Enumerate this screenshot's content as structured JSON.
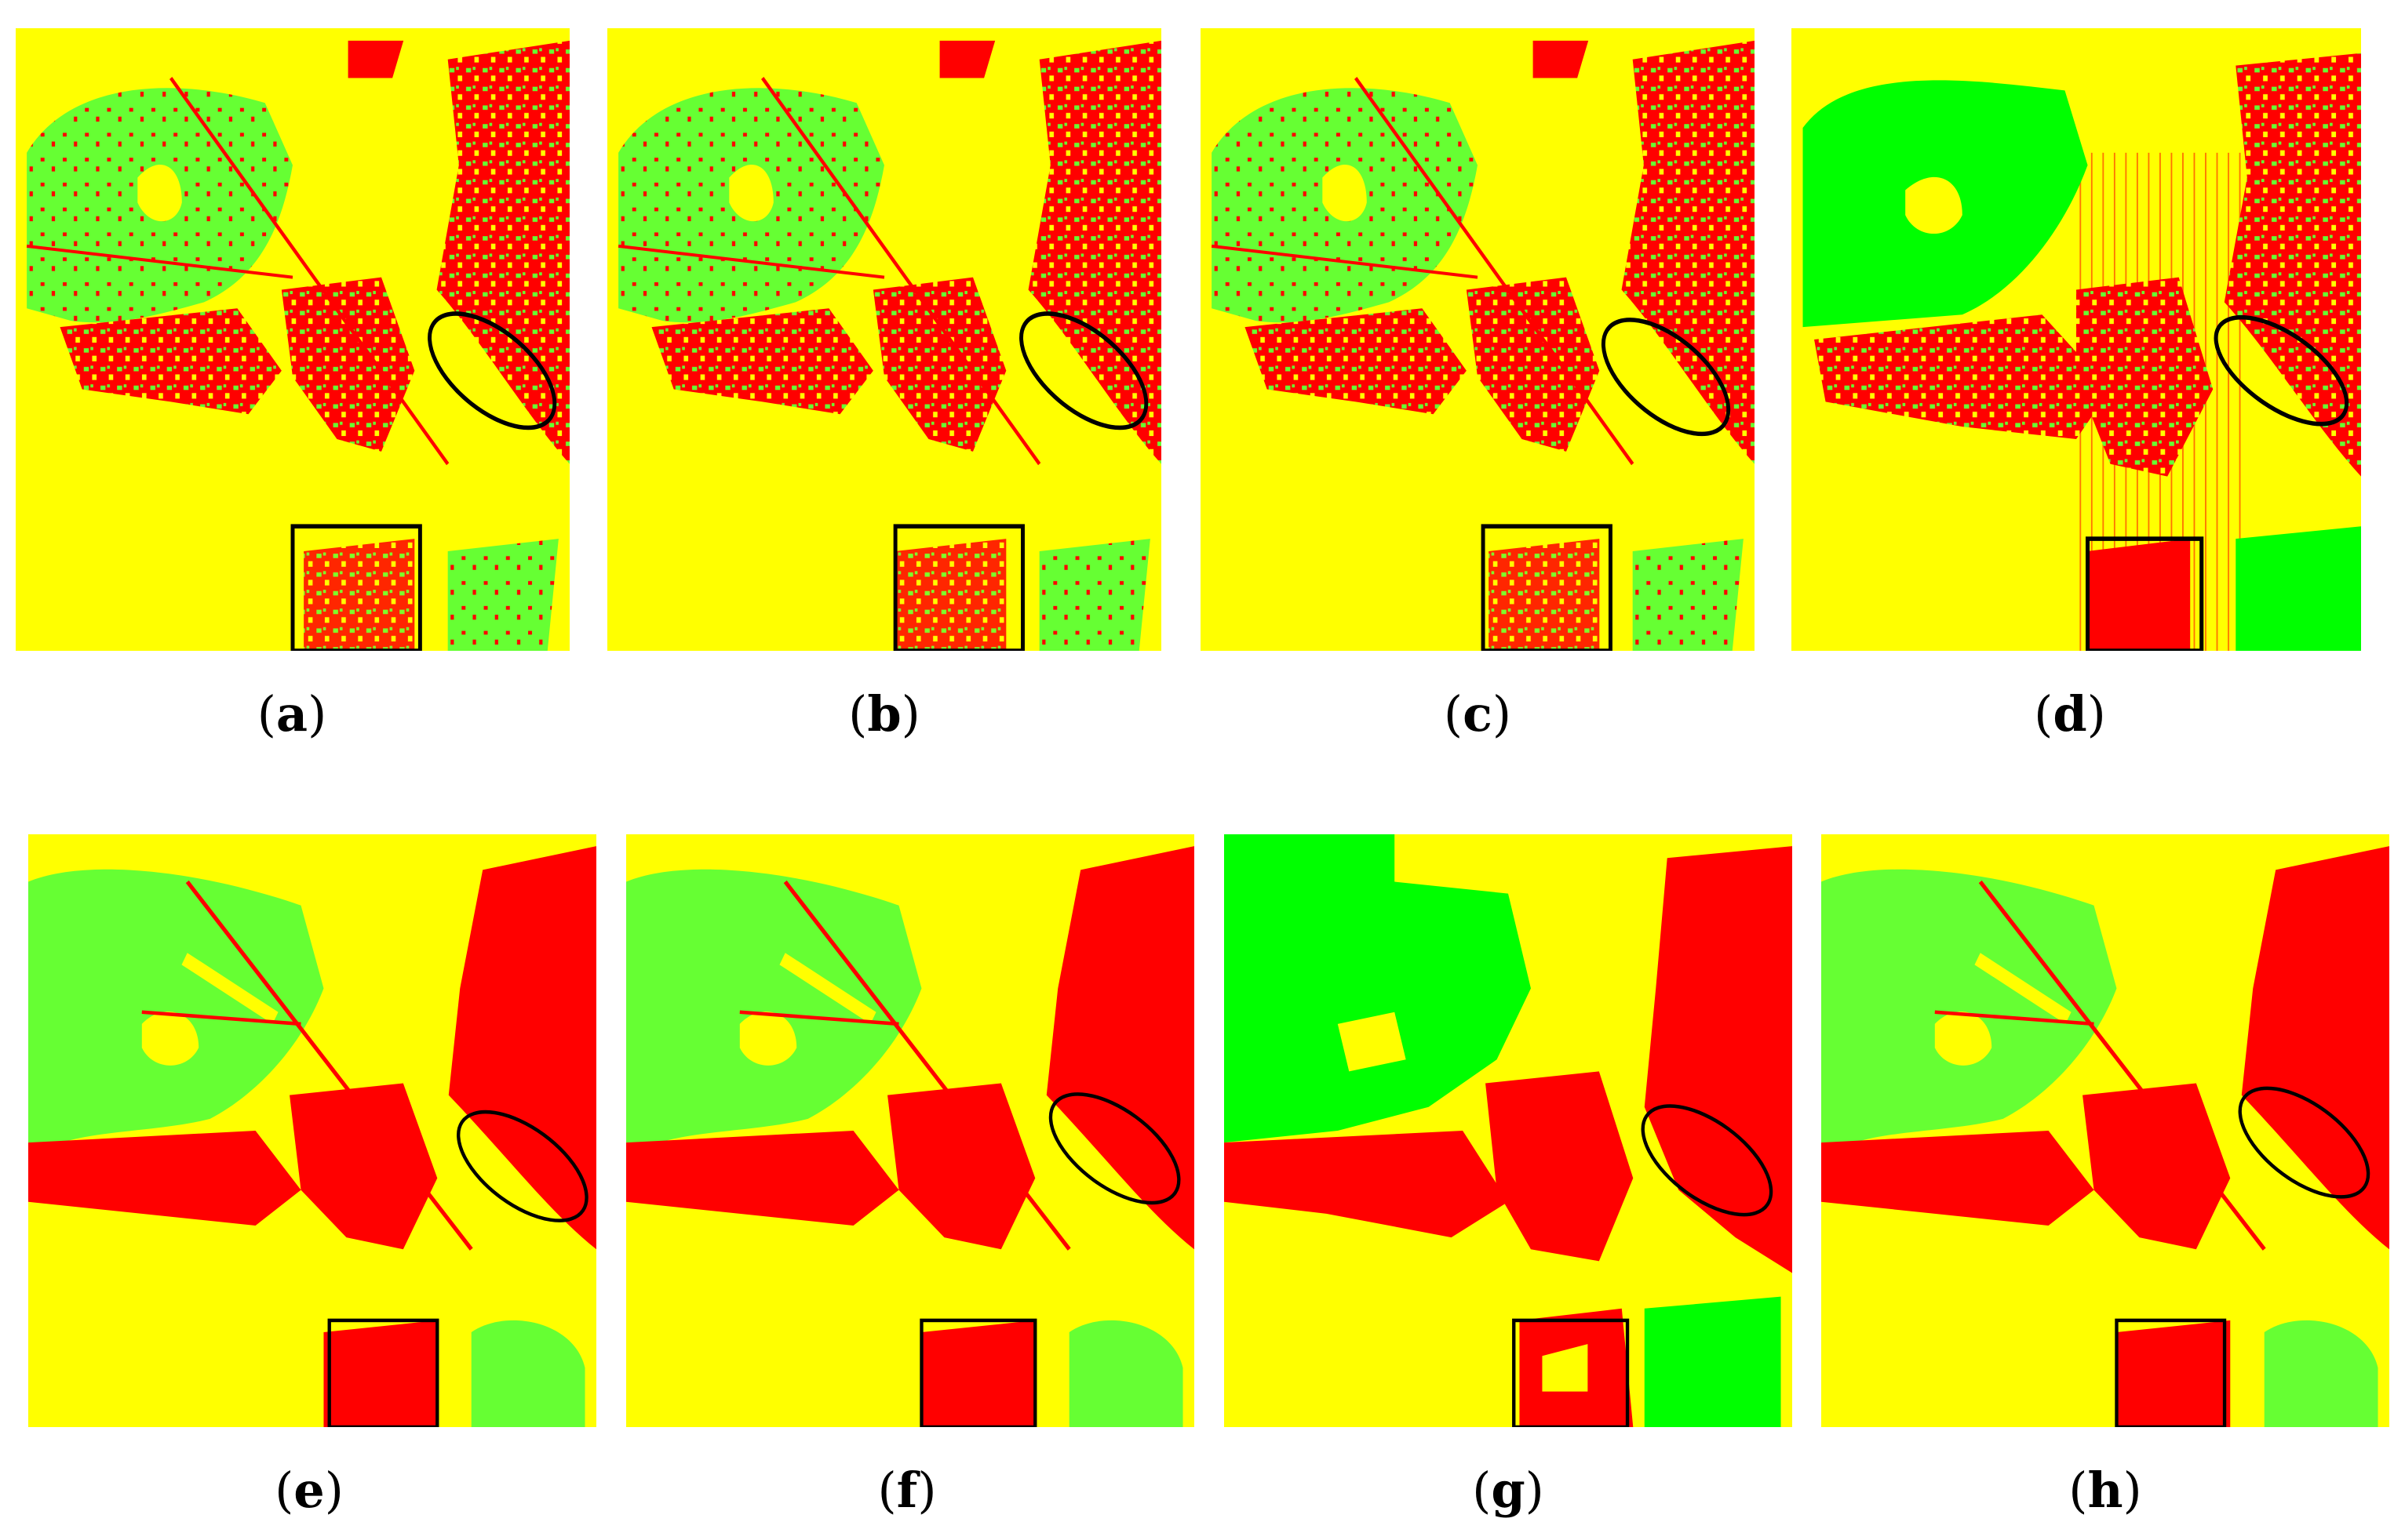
{
  "colors": {
    "red": "#ff0000",
    "yellow": "#ffff00",
    "green": "#66ff33",
    "bright_green": "#00ff00",
    "marker": "#000000"
  },
  "panels": [
    {
      "label": "a",
      "style": "noisy"
    },
    {
      "label": "b",
      "style": "noisy"
    },
    {
      "label": "c",
      "style": "noisy"
    },
    {
      "label": "d",
      "style": "streaky"
    },
    {
      "label": "e",
      "style": "smooth"
    },
    {
      "label": "f",
      "style": "smooth"
    },
    {
      "label": "g",
      "style": "blocky"
    },
    {
      "label": "h",
      "style": "smooth"
    }
  ]
}
